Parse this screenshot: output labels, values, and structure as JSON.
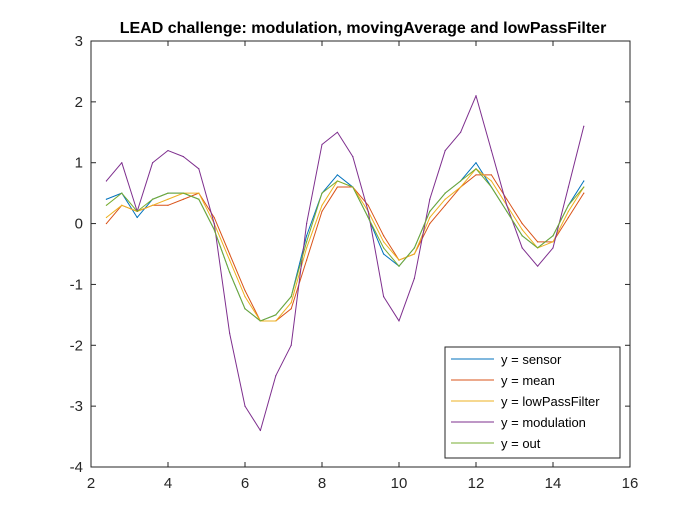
{
  "chart_data": {
    "type": "line",
    "title": "LEAD challenge: modulation, movingAverage and lowPassFilter",
    "xlabel": "",
    "ylabel": "",
    "xlim": [
      2,
      16
    ],
    "ylim": [
      -4,
      3
    ],
    "xticks": [
      2,
      4,
      6,
      8,
      10,
      12,
      14,
      16
    ],
    "yticks": [
      -4,
      -3,
      -2,
      -1,
      0,
      1,
      2,
      3
    ],
    "grid": false,
    "legend_position": "bottom-right",
    "x": [
      2.4,
      2.8,
      3.2,
      3.6,
      4.0,
      4.4,
      4.8,
      5.2,
      5.6,
      6.0,
      6.4,
      6.8,
      7.2,
      7.6,
      8.0,
      8.4,
      8.8,
      9.2,
      9.6,
      10.0,
      10.4,
      10.8,
      11.2,
      11.6,
      12.0,
      12.4,
      12.8,
      13.2,
      13.6,
      14.0,
      14.4,
      14.8
    ],
    "series": [
      {
        "name": "y = sensor",
        "color": "#0072bd",
        "values": [
          0.4,
          0.5,
          0.1,
          0.4,
          0.5,
          0.5,
          0.4,
          -0.1,
          -0.8,
          -1.4,
          -1.6,
          -1.5,
          -1.2,
          -0.2,
          0.5,
          0.8,
          0.6,
          0.1,
          -0.5,
          -0.7,
          -0.4,
          0.2,
          0.5,
          0.7,
          1.0,
          0.6,
          0.2,
          -0.2,
          -0.4,
          -0.2,
          0.3,
          0.7
        ]
      },
      {
        "name": "y = mean",
        "color": "#d95319",
        "values": [
          0.0,
          0.3,
          0.2,
          0.3,
          0.3,
          0.4,
          0.5,
          0.1,
          -0.5,
          -1.1,
          -1.6,
          -1.6,
          -1.4,
          -0.6,
          0.2,
          0.6,
          0.6,
          0.3,
          -0.2,
          -0.6,
          -0.5,
          0.0,
          0.3,
          0.6,
          0.8,
          0.8,
          0.4,
          0.0,
          -0.3,
          -0.3,
          0.1,
          0.5
        ]
      },
      {
        "name": "y = lowPassFilter",
        "color": "#edb120",
        "values": [
          0.1,
          0.3,
          0.2,
          0.3,
          0.4,
          0.5,
          0.5,
          0.0,
          -0.6,
          -1.2,
          -1.6,
          -1.6,
          -1.3,
          -0.4,
          0.3,
          0.7,
          0.6,
          0.2,
          -0.3,
          -0.6,
          -0.5,
          0.1,
          0.4,
          0.6,
          0.9,
          0.7,
          0.3,
          -0.1,
          -0.4,
          -0.3,
          0.2,
          0.6
        ]
      },
      {
        "name": "y = modulation",
        "color": "#7e2f8e",
        "values": [
          0.7,
          1.0,
          0.2,
          1.0,
          1.2,
          1.1,
          0.9,
          0.0,
          -1.8,
          -3.0,
          -3.4,
          -2.5,
          -2.0,
          0.0,
          1.3,
          1.5,
          1.1,
          0.2,
          -1.2,
          -1.6,
          -0.9,
          0.4,
          1.2,
          1.5,
          2.1,
          1.2,
          0.3,
          -0.4,
          -0.7,
          -0.4,
          0.6,
          1.6
        ]
      },
      {
        "name": "y = out",
        "color": "#77ac30",
        "values": [
          0.3,
          0.5,
          0.2,
          0.4,
          0.5,
          0.5,
          0.4,
          -0.1,
          -0.8,
          -1.4,
          -1.6,
          -1.5,
          -1.2,
          -0.3,
          0.5,
          0.7,
          0.6,
          0.1,
          -0.4,
          -0.7,
          -0.4,
          0.2,
          0.5,
          0.7,
          0.9,
          0.6,
          0.2,
          -0.2,
          -0.4,
          -0.2,
          0.3,
          0.6
        ]
      }
    ]
  }
}
